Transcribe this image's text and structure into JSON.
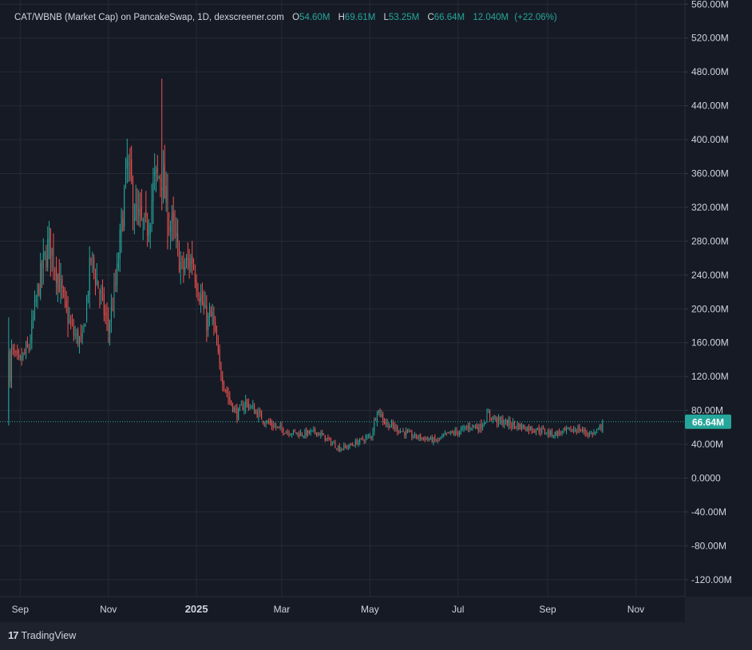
{
  "legend": {
    "title": "CAT/WBNB (Market Cap) on PancakeSwap, 1D, dexscreener.com",
    "open_label": "O",
    "open_value": "54.60M",
    "high_label": "H",
    "high_value": "69.61M",
    "low_label": "L",
    "low_value": "53.25M",
    "close_label": "C",
    "close_value": "66.64M",
    "volume_value": "12.040M",
    "change_value": "(+22.06%)"
  },
  "price_badge": "66.64M",
  "brand": {
    "icon": "17",
    "text": "TradingView"
  },
  "colors": {
    "background": "#161a25",
    "frame": "#1e222d",
    "grid": "#262a35",
    "up": "#26a69a",
    "down": "#ef5350",
    "text": "#d1d4dc"
  },
  "chart_data": {
    "type": "candlestick",
    "title": "CAT/WBNB (Market Cap) on PancakeSwap, 1D, dexscreener.com",
    "y_unit": "M",
    "ylim": [
      -140,
      565
    ],
    "y_ticks": [
      560,
      520,
      480,
      440,
      400,
      360,
      320,
      280,
      240,
      200,
      160,
      120,
      80,
      40,
      0,
      -40,
      -80,
      -120
    ],
    "y_tick_labels": [
      "560.00M",
      "520.00M",
      "480.00M",
      "440.00M",
      "400.00M",
      "360.00M",
      "320.00M",
      "280.00M",
      "240.00M",
      "200.00M",
      "160.00M",
      "120.00M",
      "80.00M",
      "40.00M",
      "0.0000",
      "-40.00M",
      "-80.00M",
      "-120.00M"
    ],
    "x_range": [
      "2024-08-18",
      "2025-12-05"
    ],
    "x_ticks": [
      {
        "date": "2024-09-01",
        "label": "Sep",
        "bold": false
      },
      {
        "date": "2024-11-01",
        "label": "Nov",
        "bold": false
      },
      {
        "date": "2025-01-01",
        "label": "2025",
        "bold": true
      },
      {
        "date": "2025-03-01",
        "label": "Mar",
        "bold": false
      },
      {
        "date": "2025-05-01",
        "label": "May",
        "bold": false
      },
      {
        "date": "2025-07-01",
        "label": "Jul",
        "bold": false
      },
      {
        "date": "2025-09-01",
        "label": "Sep",
        "bold": false
      },
      {
        "date": "2025-11-01",
        "label": "Nov",
        "bold": false
      }
    ],
    "grid": true,
    "current_price": 66.64,
    "start_date": "2024-08-24",
    "close_path": [
      [
        "2024-08-24",
        70
      ],
      [
        "2024-08-26",
        150
      ],
      [
        "2024-08-31",
        135
      ],
      [
        "2024-09-07",
        155
      ],
      [
        "2024-09-14",
        230
      ],
      [
        "2024-09-21",
        280
      ],
      [
        "2024-09-27",
        240
      ],
      [
        "2024-10-02",
        200
      ],
      [
        "2024-10-08",
        170
      ],
      [
        "2024-10-14",
        160
      ],
      [
        "2024-10-20",
        260
      ],
      [
        "2024-10-26",
        220
      ],
      [
        "2024-11-01",
        175
      ],
      [
        "2024-11-07",
        240
      ],
      [
        "2024-11-14",
        370
      ],
      [
        "2024-11-20",
        310
      ],
      [
        "2024-11-27",
        290
      ],
      [
        "2024-12-03",
        350
      ],
      [
        "2024-12-08",
        360
      ],
      [
        "2024-12-12",
        310
      ],
      [
        "2024-12-16",
        290
      ],
      [
        "2024-12-22",
        245
      ],
      [
        "2024-12-29",
        260
      ],
      [
        "2025-01-03",
        220
      ],
      [
        "2025-01-08",
        185
      ],
      [
        "2025-01-12",
        190
      ],
      [
        "2025-01-17",
        130
      ],
      [
        "2025-01-23",
        95
      ],
      [
        "2025-01-29",
        75
      ],
      [
        "2025-02-04",
        90
      ],
      [
        "2025-02-10",
        80
      ],
      [
        "2025-02-17",
        68
      ],
      [
        "2025-02-25",
        60
      ],
      [
        "2025-03-05",
        55
      ],
      [
        "2025-03-15",
        52
      ],
      [
        "2025-03-25",
        55
      ],
      [
        "2025-04-02",
        45
      ],
      [
        "2025-04-10",
        35
      ],
      [
        "2025-04-17",
        38
      ],
      [
        "2025-04-25",
        45
      ],
      [
        "2025-05-02",
        50
      ],
      [
        "2025-05-06",
        82
      ],
      [
        "2025-05-12",
        65
      ],
      [
        "2025-05-20",
        58
      ],
      [
        "2025-05-30",
        50
      ],
      [
        "2025-06-08",
        47
      ],
      [
        "2025-06-16",
        44
      ],
      [
        "2025-06-24",
        52
      ],
      [
        "2025-07-02",
        55
      ],
      [
        "2025-07-10",
        62
      ],
      [
        "2025-07-16",
        60
      ],
      [
        "2025-07-22",
        75
      ],
      [
        "2025-07-28",
        68
      ],
      [
        "2025-08-06",
        64
      ],
      [
        "2025-08-16",
        60
      ],
      [
        "2025-08-26",
        57
      ],
      [
        "2025-09-05",
        52
      ],
      [
        "2025-09-15",
        56
      ],
      [
        "2025-09-22",
        58
      ],
      [
        "2025-09-30",
        52
      ],
      [
        "2025-10-06",
        55
      ],
      [
        "2025-10-09",
        66.64
      ]
    ],
    "last_candle": {
      "open": 54.6,
      "high": 69.61,
      "low": 53.25,
      "close": 66.64,
      "volume": "12.040M",
      "change_pct": 22.06
    },
    "annotations": {
      "all_time_high": {
        "date": "2024-12-08",
        "value": 472
      },
      "first_low_wick": {
        "date": "2024-08-24",
        "value": 62
      }
    }
  }
}
